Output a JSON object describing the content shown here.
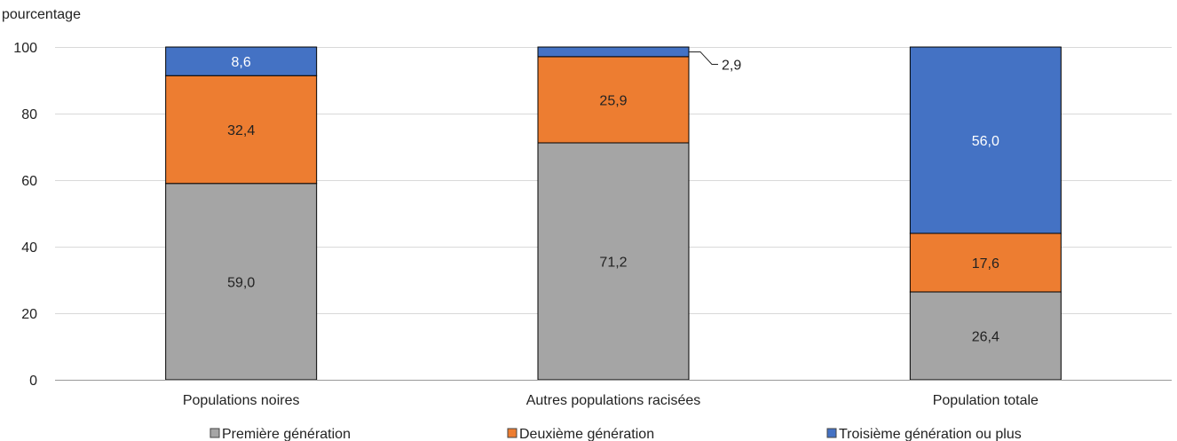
{
  "chart_data": {
    "type": "bar",
    "stacked": true,
    "title": "",
    "ylabel": "pourcentage",
    "xlabel": "",
    "ylim": [
      0,
      100
    ],
    "yticks": [
      0,
      20,
      40,
      60,
      80,
      100
    ],
    "grid": true,
    "legend_position": "bottom",
    "categories": [
      "Populations noires",
      "Autres populations racisées",
      "Population totale"
    ],
    "series": [
      {
        "name": "Première génération",
        "color": "#a5a5a5",
        "label_color": "#222222",
        "values": [
          59.0,
          71.2,
          26.4
        ],
        "labels": [
          "59,0",
          "71,2",
          "26,4"
        ]
      },
      {
        "name": "Deuxième génération",
        "color": "#ed7d31",
        "label_color": "#222222",
        "values": [
          32.4,
          25.9,
          17.6
        ],
        "labels": [
          "32,4",
          "25,9",
          "17,6"
        ]
      },
      {
        "name": "Troisième génération ou plus",
        "color": "#4472c4",
        "label_color": "#ffffff",
        "values": [
          8.6,
          2.9,
          56.0
        ],
        "labels": [
          "8,6",
          "2,9",
          "56,0"
        ]
      }
    ],
    "callouts": [
      {
        "series": 2,
        "category": 1
      }
    ]
  }
}
